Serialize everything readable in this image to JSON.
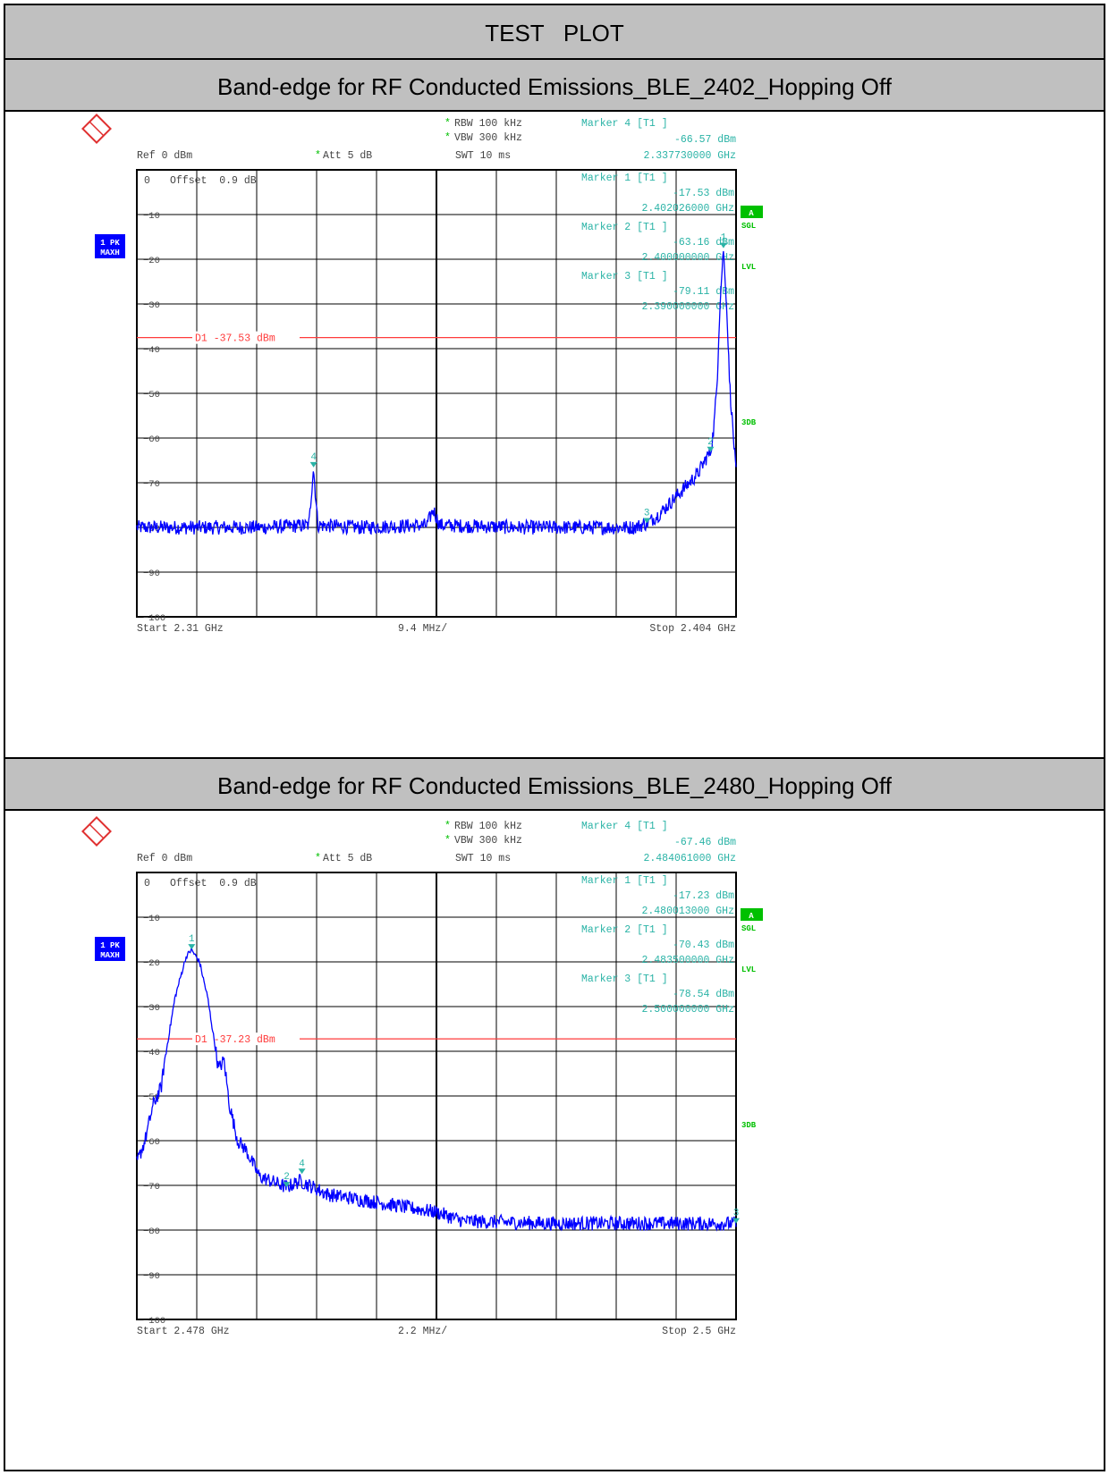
{
  "report": {
    "title": "TEST   PLOT",
    "colors": {
      "header_bg": "#c0c0c0",
      "trace": "#0000ff",
      "marker": "#2ab3a6",
      "display_line": "#ff3b3b",
      "status_green": "#00c000",
      "badge_blue": "#0000ff"
    }
  },
  "plots": [
    {
      "section_title": "Band-edge for RF Conducted Emissions_BLE_2402_Hopping Off",
      "header": {
        "rbw": "RBW 100 kHz",
        "vbw": "VBW 300 kHz",
        "swt": "SWT 10 ms",
        "ref": "Ref  0 dBm",
        "att": "Att  5 dB",
        "offset": "Offset  0.9 dB",
        "marker4_title": "Marker 4 [T1 ]",
        "marker4_level": "-66.57 dBm",
        "marker4_freq": "2.337730000 GHz"
      },
      "side_labels": {
        "trace_mode": "1 PK",
        "trace_hold": "MAXH",
        "status_a": "A",
        "sgl": "SGL",
        "lvl": "LVL",
        "db3": "3DB"
      },
      "marker_table": [
        {
          "title": "Marker 1 [T1 ]",
          "level": "-17.53 dBm",
          "freq": "2.402026000 GHz"
        },
        {
          "title": "Marker 2 [T1 ]",
          "level": "-63.16 dBm",
          "freq": "2.400000000 GHz"
        },
        {
          "title": "Marker 3 [T1 ]",
          "level": "-79.11 dBm",
          "freq": "2.390000000 GHz"
        }
      ],
      "footer": {
        "start": "Start 2.31 GHz",
        "span": "9.4 MHz/",
        "stop": "Stop 2.404 GHz"
      },
      "display_line_label": "D1 -37.53 dBm",
      "chart_data": {
        "type": "line",
        "x_unit": "GHz",
        "y_unit": "dBm",
        "xlim": [
          2.31,
          2.404
        ],
        "ylim": [
          -100,
          0
        ],
        "y_ticks": [
          0,
          -10,
          -20,
          -30,
          -40,
          -50,
          -60,
          -70,
          -80,
          -90,
          -100
        ],
        "grid": true,
        "display_line": -37.53,
        "series": [
          {
            "values": [
              [
                2.31,
                -80
              ],
              [
                2.32,
                -80
              ],
              [
                2.33,
                -80
              ],
              [
                2.337,
                -79.5
              ],
              [
                2.3377,
                -66.57
              ],
              [
                2.3384,
                -79.5
              ],
              [
                2.345,
                -80
              ],
              [
                2.3555,
                -79.5
              ],
              [
                2.3565,
                -76
              ],
              [
                2.3575,
                -79.5
              ],
              [
                2.37,
                -80
              ],
              [
                2.38,
                -80
              ],
              [
                2.388,
                -80
              ],
              [
                2.39,
                -79.11
              ],
              [
                2.392,
                -77
              ],
              [
                2.394,
                -74
              ],
              [
                2.396,
                -71
              ],
              [
                2.398,
                -68
              ],
              [
                2.3995,
                -64
              ],
              [
                2.4,
                -63.16
              ],
              [
                2.4005,
                -58
              ],
              [
                2.401,
                -48
              ],
              [
                2.4015,
                -30
              ],
              [
                2.402,
                -17.53
              ],
              [
                2.4025,
                -30
              ],
              [
                2.403,
                -48
              ],
              [
                2.4035,
                -58
              ],
              [
                2.404,
                -68
              ]
            ]
          }
        ],
        "markers": [
          {
            "id": "1",
            "x": 2.402026,
            "y": -17.53
          },
          {
            "id": "2",
            "x": 2.4,
            "y": -63.16
          },
          {
            "id": "3",
            "x": 2.39,
            "y": -79.11
          },
          {
            "id": "4",
            "x": 2.33773,
            "y": -66.57
          }
        ]
      }
    },
    {
      "section_title": "Band-edge for RF Conducted Emissions_BLE_2480_Hopping Off",
      "header": {
        "rbw": "RBW 100 kHz",
        "vbw": "VBW 300 kHz",
        "swt": "SWT 10 ms",
        "ref": "Ref  0 dBm",
        "att": "Att  5 dB",
        "offset": "Offset  0.9 dB",
        "marker4_title": "Marker 4 [T1 ]",
        "marker4_level": "-67.46 dBm",
        "marker4_freq": "2.484061000 GHz"
      },
      "side_labels": {
        "trace_mode": "1 PK",
        "trace_hold": "MAXH",
        "status_a": "A",
        "sgl": "SGL",
        "lvl": "LVL",
        "db3": "3DB"
      },
      "marker_table": [
        {
          "title": "Marker 1 [T1 ]",
          "level": "-17.23 dBm",
          "freq": "2.480013000 GHz"
        },
        {
          "title": "Marker 2 [T1 ]",
          "level": "-70.43 dBm",
          "freq": "2.483500000 GHz"
        },
        {
          "title": "Marker 3 [T1 ]",
          "level": "-78.54 dBm",
          "freq": "2.500000000 GHz"
        }
      ],
      "footer": {
        "start": "Start 2.478 GHz",
        "span": "2.2 MHz/",
        "stop": "Stop 2.5 GHz"
      },
      "display_line_label": "D1 -37.23 dBm",
      "chart_data": {
        "type": "line",
        "x_unit": "GHz",
        "y_unit": "dBm",
        "xlim": [
          2.478,
          2.5
        ],
        "ylim": [
          -100,
          0
        ],
        "y_ticks": [
          0,
          -10,
          -20,
          -30,
          -40,
          -50,
          -60,
          -70,
          -80,
          -90,
          -100
        ],
        "grid": true,
        "display_line": -37.23,
        "series": [
          {
            "values": [
              [
                2.478,
                -65
              ],
              [
                2.4783,
                -60
              ],
              [
                2.4786,
                -52
              ],
              [
                2.4789,
                -48
              ],
              [
                2.479,
                -43
              ],
              [
                2.4794,
                -28
              ],
              [
                2.4798,
                -19
              ],
              [
                2.48,
                -17.23
              ],
              [
                2.4803,
                -20
              ],
              [
                2.4806,
                -28
              ],
              [
                2.481,
                -44
              ],
              [
                2.4812,
                -42
              ],
              [
                2.4814,
                -52
              ],
              [
                2.4817,
                -60
              ],
              [
                2.482,
                -62
              ],
              [
                2.4825,
                -68
              ],
              [
                2.4835,
                -70.43
              ],
              [
                2.484,
                -69
              ],
              [
                2.485,
                -72
              ],
              [
                2.487,
                -74
              ],
              [
                2.489,
                -76
              ],
              [
                2.49,
                -78
              ],
              [
                2.493,
                -78.5
              ],
              [
                2.496,
                -78.5
              ],
              [
                2.5,
                -78.54
              ]
            ]
          }
        ],
        "markers": [
          {
            "id": "1",
            "x": 2.480013,
            "y": -17.23
          },
          {
            "id": "2",
            "x": 2.4835,
            "y": -70.43
          },
          {
            "id": "3",
            "x": 2.5,
            "y": -78.54
          },
          {
            "id": "4",
            "x": 2.484061,
            "y": -67.46
          }
        ]
      }
    }
  ]
}
